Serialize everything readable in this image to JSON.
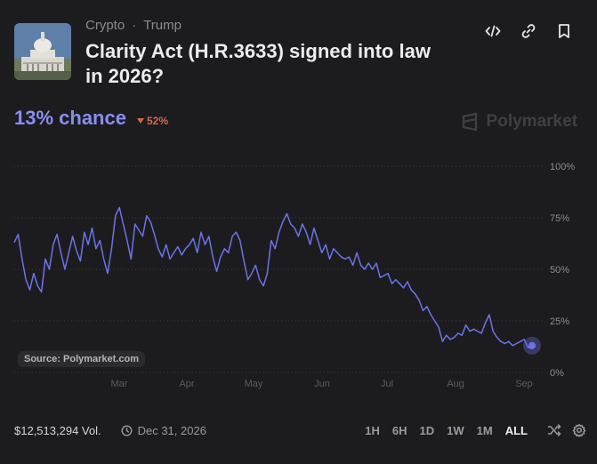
{
  "header": {
    "breadcrumbs": [
      "Crypto",
      "Trump"
    ],
    "separator": "·",
    "title": "Clarity Act (H.R.3633) signed into law in 2026?"
  },
  "market": {
    "chance_label": "13% chance",
    "change": "52%",
    "brand": "Polymarket"
  },
  "chart_data": {
    "type": "line",
    "y_ticks": [
      "100%",
      "75%",
      "50%",
      "25%",
      "0%"
    ],
    "x_ticks": [
      "Mar",
      "Apr",
      "May",
      "Jun",
      "Jul",
      "Aug",
      "Sep"
    ],
    "ylim": [
      0,
      100
    ],
    "color": "#6c73e8",
    "series": [
      {
        "values": [
          63,
          67,
          55,
          45,
          40,
          48,
          42,
          39,
          55,
          50,
          62,
          67,
          58,
          50,
          58,
          66,
          59,
          54,
          68,
          62,
          70,
          60,
          64,
          55,
          48,
          60,
          76,
          80,
          72,
          64,
          55,
          72,
          69,
          66,
          76,
          73,
          67,
          60,
          56,
          62,
          55,
          58,
          61,
          57,
          60,
          62,
          65,
          58,
          68,
          62,
          66,
          56,
          49,
          56,
          60,
          58,
          66,
          68,
          64,
          54,
          45,
          48,
          52,
          45,
          42,
          48,
          64,
          60,
          68,
          73,
          77,
          72,
          70,
          66,
          72,
          68,
          62,
          70,
          64,
          58,
          62,
          55,
          60,
          58,
          56,
          55,
          56,
          52,
          58,
          52,
          50,
          53,
          50,
          53,
          46,
          47,
          48,
          43,
          45,
          43,
          41,
          44,
          40,
          38,
          35,
          30,
          32,
          28,
          25,
          22,
          15,
          18,
          16,
          17,
          19,
          18,
          23,
          20,
          21,
          20,
          19,
          24,
          28,
          20,
          17,
          15,
          14,
          15,
          13,
          14,
          15,
          16,
          12,
          13
        ]
      }
    ],
    "end_value": 13
  },
  "source_label": "Source: Polymarket.com",
  "footer": {
    "volume": "$12,513,294 Vol.",
    "end_date": "Dec 31, 2026",
    "ranges": [
      "1H",
      "6H",
      "1D",
      "1W",
      "1M",
      "ALL"
    ],
    "active_range": "ALL"
  },
  "icons": {
    "embed": "code-icon",
    "link": "link-icon",
    "bookmark": "bookmark-icon",
    "clock": "clock-icon",
    "shuffle": "shuffle-icon",
    "settings": "gear-icon"
  }
}
